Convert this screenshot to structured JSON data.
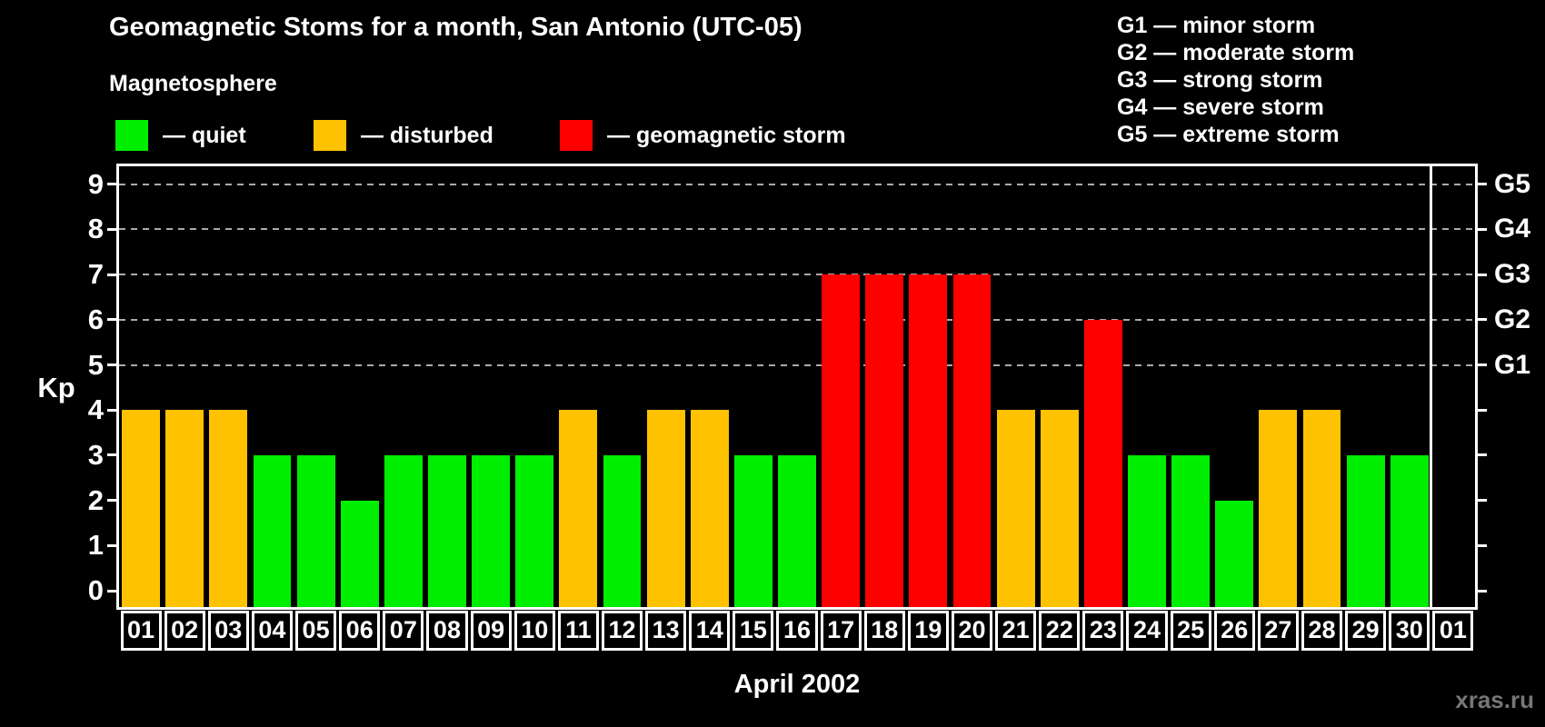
{
  "header": {
    "title": "Geomagnetic Stoms for a month, San Antonio (UTC-05)"
  },
  "legend": {
    "title": "Magnetosphere",
    "items": [
      {
        "key": "quiet",
        "label": "— quiet",
        "color": "#00ee00"
      },
      {
        "key": "disturbed",
        "label": "— disturbed",
        "color": "#ffc200"
      },
      {
        "key": "storm",
        "label": "— geomagnetic storm",
        "color": "#ff0000"
      }
    ]
  },
  "g_legend": {
    "items": [
      "G1 — minor storm",
      "G2 — moderate storm",
      "G3 — strong storm",
      "G4 — severe storm",
      "G5 — extreme storm"
    ]
  },
  "axes": {
    "y_label": "Kp",
    "x_label": "April 2002",
    "y_ticks": [
      "0",
      "1",
      "2",
      "3",
      "4",
      "5",
      "6",
      "7",
      "8",
      "9"
    ],
    "right_axis_labels": [
      {
        "kp": 9,
        "label": "G5"
      },
      {
        "kp": 8,
        "label": "G4"
      },
      {
        "kp": 7,
        "label": "G3"
      },
      {
        "kp": 6,
        "label": "G2"
      },
      {
        "kp": 5,
        "label": "G1"
      }
    ],
    "gridlines_at_kp": [
      5,
      6,
      7,
      8,
      9
    ]
  },
  "footer": {
    "watermark": "xras.ru"
  },
  "chart_data": {
    "type": "bar",
    "title": "Geomagnetic Stoms for a month, San Antonio (UTC-05)",
    "xlabel": "April 2002",
    "ylabel": "Kp",
    "ylim": [
      -0.36,
      9.4
    ],
    "grid": "dashed horizontal lines at Kp 5,6,7,8,9 (G1–G5 levels)",
    "legend_position": "top-left",
    "categories": [
      "01",
      "02",
      "03",
      "04",
      "05",
      "06",
      "07",
      "08",
      "09",
      "10",
      "11",
      "12",
      "13",
      "14",
      "15",
      "16",
      "17",
      "18",
      "19",
      "20",
      "21",
      "22",
      "23",
      "24",
      "25",
      "26",
      "27",
      "28",
      "29",
      "30",
      "01"
    ],
    "values": [
      4,
      4,
      4,
      3,
      3,
      2,
      3,
      3,
      3,
      3,
      4,
      3,
      4,
      4,
      3,
      3,
      7,
      7,
      7,
      7,
      4,
      4,
      6,
      3,
      3,
      2,
      4,
      4,
      3,
      3,
      null
    ],
    "status": [
      "disturbed",
      "disturbed",
      "disturbed",
      "quiet",
      "quiet",
      "quiet",
      "quiet",
      "quiet",
      "quiet",
      "quiet",
      "disturbed",
      "quiet",
      "disturbed",
      "disturbed",
      "quiet",
      "quiet",
      "storm",
      "storm",
      "storm",
      "storm",
      "disturbed",
      "disturbed",
      "storm",
      "quiet",
      "quiet",
      "quiet",
      "disturbed",
      "disturbed",
      "quiet",
      "quiet",
      null
    ],
    "colors": {
      "quiet": "#00ee00",
      "disturbed": "#ffc200",
      "storm": "#ff0000"
    },
    "month_separator_after_index": 29
  }
}
